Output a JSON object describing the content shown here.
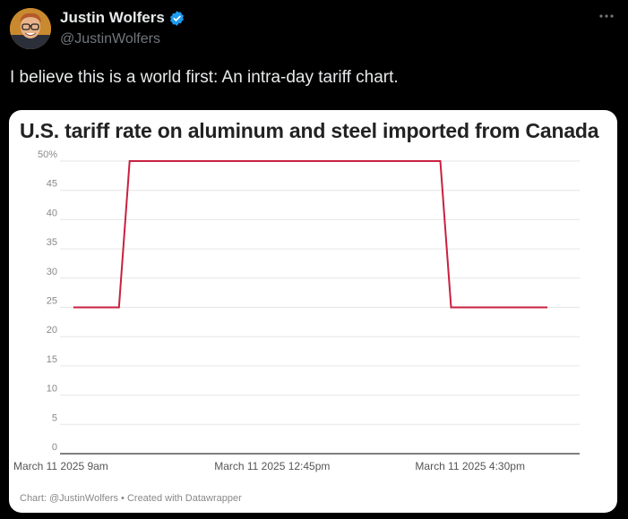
{
  "tweet": {
    "author_name": "Justin Wolfers",
    "author_handle": "@JustinWolfers",
    "text": "I believe this is a world first: An intra-day tariff chart."
  },
  "colors": {
    "background": "#000000",
    "verified_badge": "#1d9bf0",
    "line": "#c8213f",
    "card": "#ffffff"
  },
  "icons": {
    "verified": "verified-badge-icon",
    "more": "more-options-icon"
  },
  "chart_data": {
    "type": "line",
    "title": "U.S. tariff rate on aluminum and steel imported from Canada",
    "xlabel": "",
    "ylabel": "",
    "ylim": [
      0,
      50
    ],
    "y_ticks": [
      "0",
      "5",
      "10",
      "15",
      "20",
      "25",
      "30",
      "35",
      "40",
      "45",
      "50%"
    ],
    "x_ticks": [
      "March 11 2025 9am",
      "March 11 2025 12:45pm",
      "March 11 2025 4:30pm"
    ],
    "x_tick_hours": [
      9,
      12.75,
      16.5
    ],
    "grid": true,
    "series": [
      {
        "x_hours": [
          9.15,
          10.0,
          10.2,
          16.0,
          16.2,
          18.0
        ],
        "values": [
          25,
          25,
          50,
          50,
          25,
          25
        ]
      }
    ],
    "credit": "Chart: @JustinWolfers • Created with Datawrapper"
  }
}
